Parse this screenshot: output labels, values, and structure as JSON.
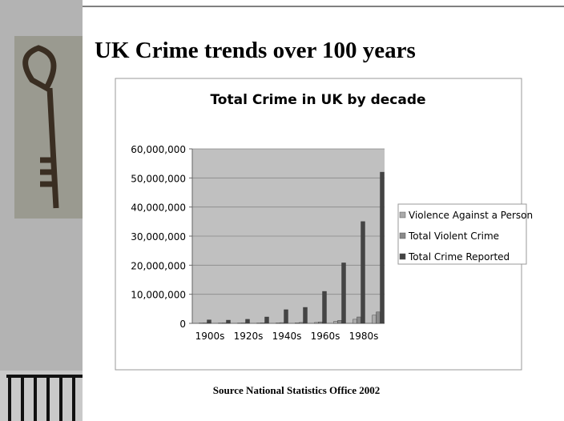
{
  "slide": {
    "title": "UK Crime trends over 100 years",
    "source": "Source National Statistics Office 2002"
  },
  "chart_data": {
    "type": "bar",
    "title": "Total Crime in UK by decade",
    "categories": [
      "1900s",
      null,
      "1920s",
      null,
      "1940s",
      null,
      "1960s",
      null,
      "1980s",
      null
    ],
    "series": [
      {
        "name": "Violence Against a Person",
        "color": "#aaaaaa",
        "values": [
          100000,
          100000,
          100000,
          100000,
          150000,
          200000,
          300000,
          700000,
          1400000,
          2800000
        ]
      },
      {
        "name": "Total Violent Crime",
        "color": "#8a8a8a",
        "values": [
          150000,
          150000,
          150000,
          200000,
          250000,
          300000,
          500000,
          1000000,
          2200000,
          3900000
        ]
      },
      {
        "name": "Total Crime Reported",
        "color": "#444444",
        "values": [
          1200000,
          1100000,
          1400000,
          2200000,
          4700000,
          5500000,
          11000000,
          20800000,
          35000000,
          52000000
        ]
      }
    ],
    "ylim": [
      0,
      60000000
    ],
    "yticks": [
      0,
      {
        "value": 10000000,
        "label": "10,000,000"
      },
      {
        "value": 20000000,
        "label": "20,000,000"
      },
      {
        "value": 30000000,
        "label": "30,000,000"
      },
      {
        "value": 40000000,
        "label": "40,000,000"
      },
      {
        "value": 50000000,
        "label": "50,000,000"
      },
      {
        "value": 60000000,
        "label": "60,000,000"
      }
    ],
    "grid": true,
    "legend": "right"
  }
}
